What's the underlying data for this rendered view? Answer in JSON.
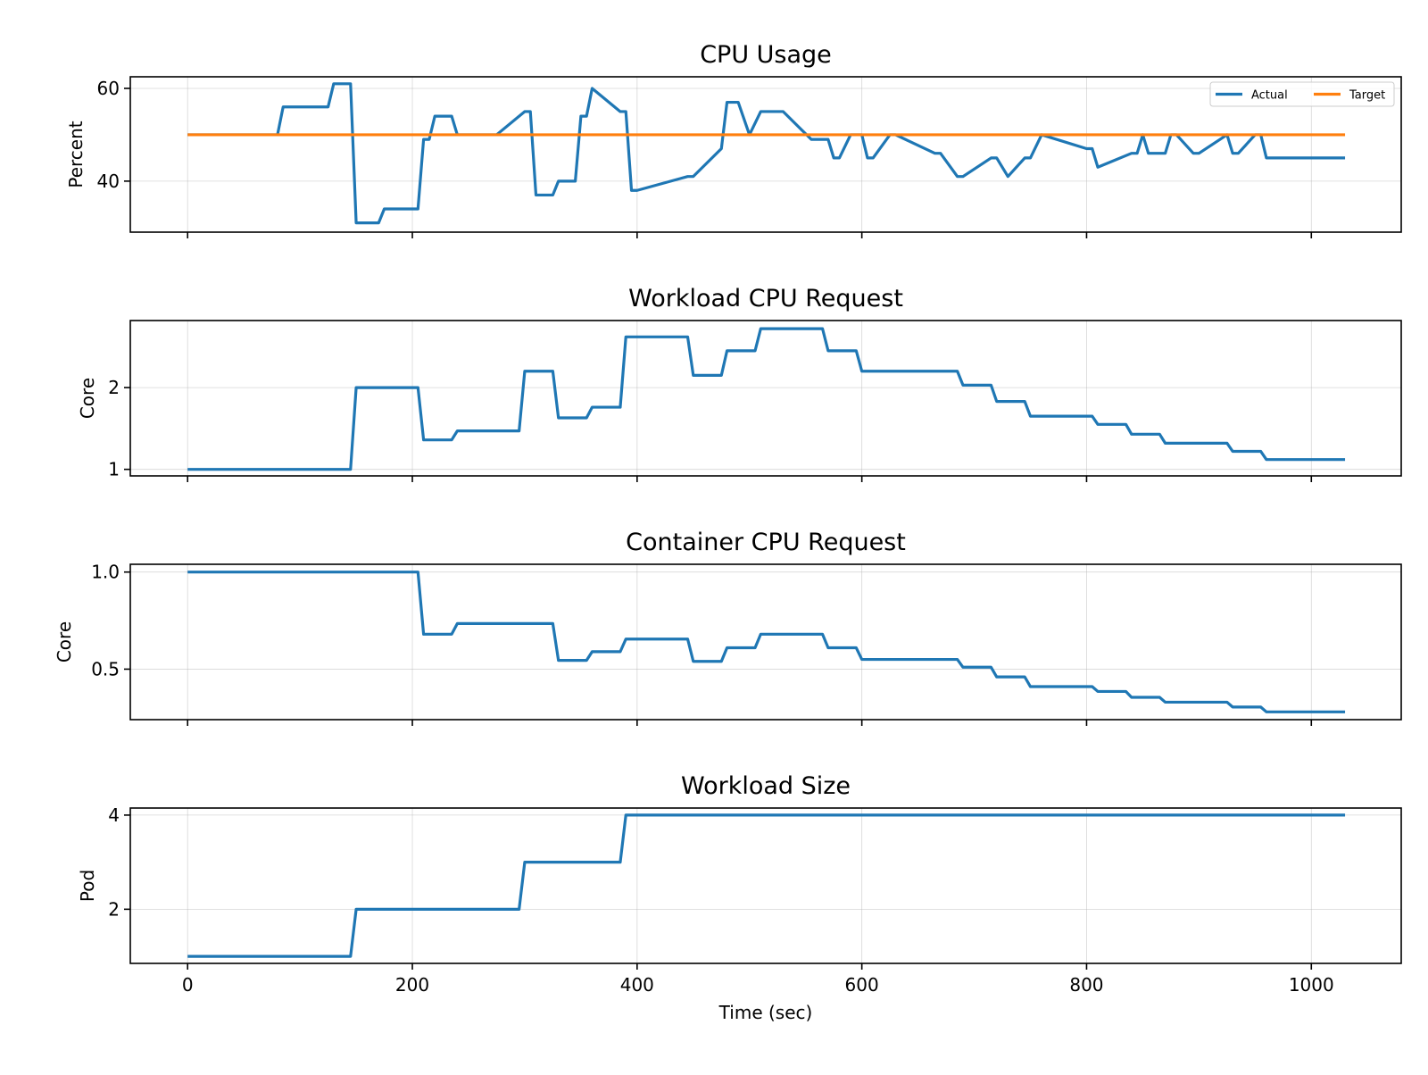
{
  "chart_data": [
    {
      "type": "line",
      "title": "CPU Usage",
      "ylabel": "Percent",
      "ylim": [
        29,
        62.5
      ],
      "yticks": [
        40,
        60
      ],
      "ytick_labels": [
        "40",
        "60"
      ],
      "legend": {
        "placement": "top-right",
        "columns": 2
      },
      "series": [
        {
          "name": "Actual",
          "color": "#1f77b4",
          "x": [
            0,
            80,
            85,
            125,
            130,
            145,
            150,
            170,
            175,
            205,
            210,
            215,
            220,
            235,
            240,
            275,
            300,
            305,
            310,
            325,
            330,
            345,
            350,
            355,
            360,
            385,
            390,
            395,
            400,
            445,
            450,
            475,
            480,
            490,
            500,
            510,
            530,
            555,
            570,
            575,
            580,
            590,
            600,
            605,
            610,
            625,
            630,
            665,
            670,
            685,
            690,
            715,
            720,
            730,
            745,
            750,
            760,
            800,
            805,
            810,
            840,
            845,
            850,
            855,
            870,
            875,
            880,
            895,
            900,
            925,
            930,
            935,
            950,
            955,
            960,
            975,
            980,
            985,
            1030
          ],
          "values": [
            50,
            50,
            56,
            56,
            61,
            61,
            31,
            31,
            34,
            34,
            49,
            49,
            54,
            54,
            50,
            50,
            55,
            55,
            37,
            37,
            40,
            40,
            54,
            54,
            60,
            55,
            55,
            38,
            38,
            41,
            41,
            47,
            57,
            57,
            50,
            55,
            55,
            49,
            49,
            45,
            45,
            50,
            50,
            45,
            45,
            50,
            50,
            46,
            46,
            41,
            41,
            45,
            45,
            41,
            45,
            45,
            50,
            47,
            47,
            43,
            46,
            46,
            50,
            46,
            46,
            50,
            50,
            46,
            46,
            50,
            46,
            46,
            50,
            50,
            45,
            45,
            45,
            45,
            45
          ]
        },
        {
          "name": "Target",
          "color": "#ff7f0e",
          "x": [
            0,
            1030
          ],
          "values": [
            50,
            50
          ]
        }
      ]
    },
    {
      "type": "line",
      "title": "Workload CPU Request",
      "ylabel": "Core",
      "ylim": [
        0.92,
        2.82
      ],
      "yticks": [
        1,
        2
      ],
      "ytick_labels": [
        "1",
        "2"
      ],
      "series": [
        {
          "color": "#1f77b4",
          "x": [
            0,
            145,
            150,
            205,
            210,
            235,
            240,
            295,
            300,
            325,
            330,
            355,
            360,
            385,
            390,
            445,
            450,
            475,
            480,
            505,
            510,
            565,
            570,
            595,
            600,
            685,
            690,
            715,
            720,
            745,
            750,
            805,
            810,
            835,
            840,
            865,
            870,
            925,
            930,
            955,
            960,
            1030
          ],
          "values": [
            1,
            1,
            2,
            2,
            1.36,
            1.36,
            1.47,
            1.47,
            2.2,
            2.2,
            1.63,
            1.63,
            1.76,
            1.76,
            2.62,
            2.62,
            2.15,
            2.15,
            2.45,
            2.45,
            2.72,
            2.72,
            2.45,
            2.45,
            2.2,
            2.2,
            2.03,
            2.03,
            1.83,
            1.83,
            1.65,
            1.65,
            1.55,
            1.55,
            1.43,
            1.43,
            1.32,
            1.32,
            1.22,
            1.22,
            1.12,
            1.12
          ]
        }
      ]
    },
    {
      "type": "line",
      "title": "Container CPU Request",
      "ylabel": "Core",
      "ylim": [
        0.24,
        1.04
      ],
      "yticks": [
        0.5,
        1.0
      ],
      "ytick_labels": [
        "0.5",
        "1.0"
      ],
      "series": [
        {
          "color": "#1f77b4",
          "x": [
            0,
            205,
            210,
            235,
            240,
            325,
            330,
            355,
            360,
            385,
            390,
            445,
            450,
            475,
            480,
            505,
            510,
            565,
            570,
            595,
            600,
            685,
            690,
            715,
            720,
            745,
            750,
            805,
            810,
            835,
            840,
            865,
            870,
            925,
            930,
            955,
            960,
            1030
          ],
          "values": [
            1,
            1,
            0.68,
            0.68,
            0.735,
            0.735,
            0.545,
            0.545,
            0.59,
            0.59,
            0.655,
            0.655,
            0.54,
            0.54,
            0.61,
            0.61,
            0.68,
            0.68,
            0.61,
            0.61,
            0.55,
            0.55,
            0.51,
            0.51,
            0.46,
            0.46,
            0.41,
            0.41,
            0.385,
            0.385,
            0.355,
            0.355,
            0.33,
            0.33,
            0.305,
            0.305,
            0.28,
            0.28
          ]
        }
      ]
    },
    {
      "type": "line",
      "title": "Workload Size",
      "ylabel": "Pod",
      "xlabel": "Time (sec)",
      "xticks": [
        0,
        200,
        400,
        600,
        800,
        1000
      ],
      "xtick_labels": [
        "0",
        "200",
        "400",
        "600",
        "800",
        "1000"
      ],
      "ylim": [
        0.85,
        4.15
      ],
      "yticks": [
        2,
        4
      ],
      "ytick_labels": [
        "2",
        "4"
      ],
      "series": [
        {
          "color": "#1f77b4",
          "x": [
            0,
            145,
            150,
            295,
            300,
            385,
            390,
            1030
          ],
          "values": [
            1,
            1,
            2,
            2,
            3,
            3,
            4,
            4
          ]
        }
      ]
    }
  ],
  "shared_x": {
    "xlim": [
      -51,
      1080
    ],
    "xticks": [
      0,
      200,
      400,
      600,
      800,
      1000
    ],
    "grid": true
  }
}
